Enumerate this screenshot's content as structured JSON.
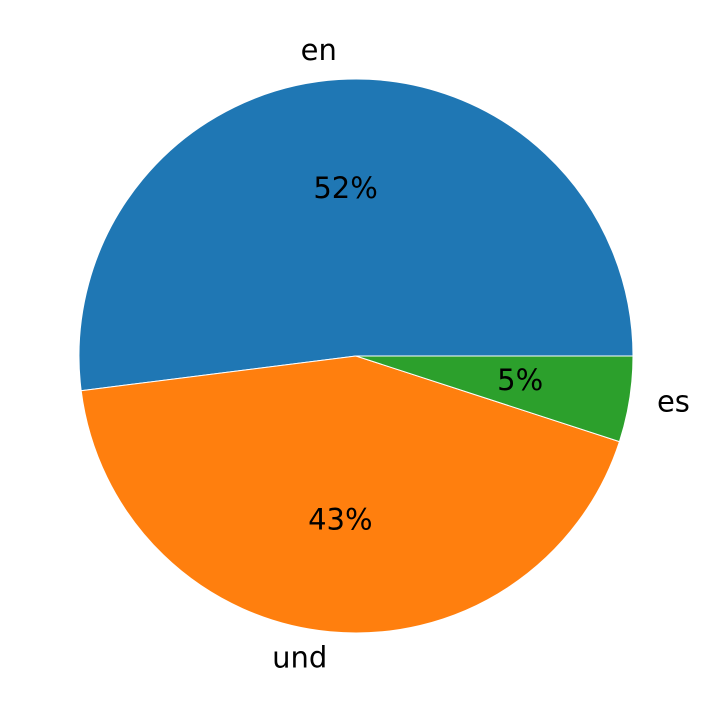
{
  "chart_data": {
    "type": "pie",
    "categories": [
      "en",
      "und",
      "es"
    ],
    "values": [
      52,
      43,
      5
    ],
    "value_labels": [
      "52%",
      "43%",
      "5%"
    ],
    "colors": [
      "#1f77b4",
      "#ff7f0e",
      "#2ca02c"
    ]
  }
}
